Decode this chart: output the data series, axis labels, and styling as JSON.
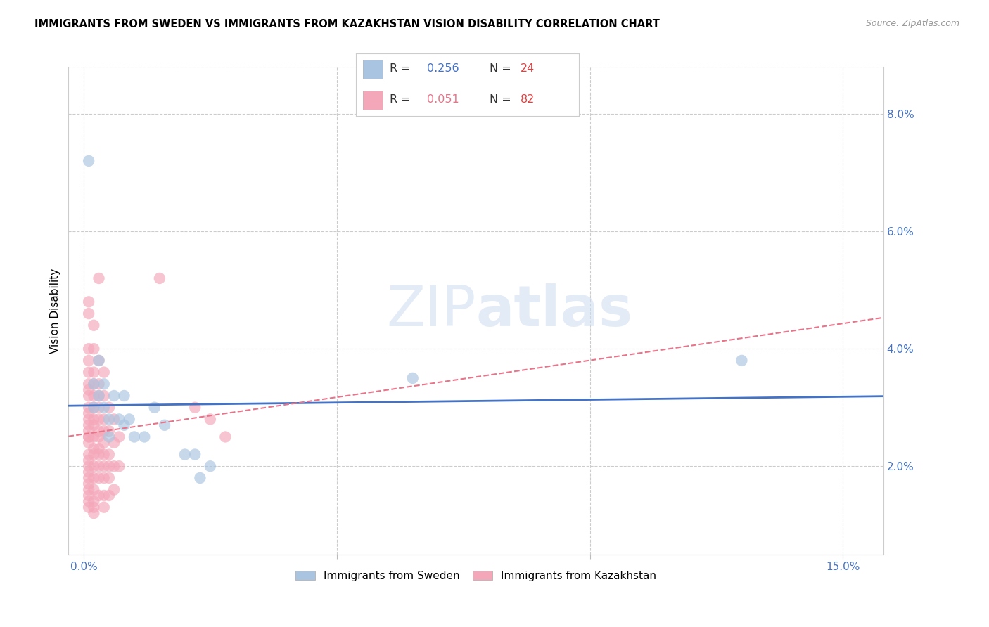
{
  "title": "IMMIGRANTS FROM SWEDEN VS IMMIGRANTS FROM KAZAKHSTAN VISION DISABILITY CORRELATION CHART",
  "source": "Source: ZipAtlas.com",
  "ylabel": "Vision Disability",
  "x_min": -0.003,
  "x_max": 0.158,
  "y_min": 0.005,
  "y_max": 0.088,
  "sweden_color": "#a8c4e0",
  "sweden_color_line": "#4472c4",
  "kazakhstan_color": "#f4a7b9",
  "kazakhstan_color_line": "#e8748a",
  "watermark": "ZIPatlas",
  "bottom_legend_sweden": "Immigrants from Sweden",
  "bottom_legend_kazakhstan": "Immigrants from Kazakhstan",
  "sweden_points": [
    [
      0.001,
      0.072
    ],
    [
      0.002,
      0.034
    ],
    [
      0.002,
      0.03
    ],
    [
      0.003,
      0.038
    ],
    [
      0.003,
      0.032
    ],
    [
      0.004,
      0.034
    ],
    [
      0.004,
      0.03
    ],
    [
      0.005,
      0.028
    ],
    [
      0.005,
      0.025
    ],
    [
      0.006,
      0.032
    ],
    [
      0.007,
      0.028
    ],
    [
      0.008,
      0.027
    ],
    [
      0.008,
      0.032
    ],
    [
      0.009,
      0.028
    ],
    [
      0.01,
      0.025
    ],
    [
      0.012,
      0.025
    ],
    [
      0.014,
      0.03
    ],
    [
      0.016,
      0.027
    ],
    [
      0.02,
      0.022
    ],
    [
      0.022,
      0.022
    ],
    [
      0.023,
      0.018
    ],
    [
      0.025,
      0.02
    ],
    [
      0.065,
      0.035
    ],
    [
      0.13,
      0.038
    ]
  ],
  "kazakhstan_points": [
    [
      0.001,
      0.048
    ],
    [
      0.001,
      0.046
    ],
    [
      0.001,
      0.04
    ],
    [
      0.001,
      0.038
    ],
    [
      0.001,
      0.036
    ],
    [
      0.001,
      0.034
    ],
    [
      0.001,
      0.033
    ],
    [
      0.001,
      0.032
    ],
    [
      0.001,
      0.03
    ],
    [
      0.001,
      0.029
    ],
    [
      0.001,
      0.028
    ],
    [
      0.001,
      0.027
    ],
    [
      0.001,
      0.026
    ],
    [
      0.001,
      0.025
    ],
    [
      0.001,
      0.025
    ],
    [
      0.001,
      0.024
    ],
    [
      0.001,
      0.022
    ],
    [
      0.001,
      0.021
    ],
    [
      0.001,
      0.02
    ],
    [
      0.001,
      0.019
    ],
    [
      0.001,
      0.018
    ],
    [
      0.001,
      0.017
    ],
    [
      0.001,
      0.016
    ],
    [
      0.001,
      0.015
    ],
    [
      0.001,
      0.014
    ],
    [
      0.001,
      0.013
    ],
    [
      0.002,
      0.044
    ],
    [
      0.002,
      0.04
    ],
    [
      0.002,
      0.036
    ],
    [
      0.002,
      0.034
    ],
    [
      0.002,
      0.032
    ],
    [
      0.002,
      0.03
    ],
    [
      0.002,
      0.028
    ],
    [
      0.002,
      0.027
    ],
    [
      0.002,
      0.025
    ],
    [
      0.002,
      0.023
    ],
    [
      0.002,
      0.022
    ],
    [
      0.002,
      0.02
    ],
    [
      0.002,
      0.018
    ],
    [
      0.002,
      0.016
    ],
    [
      0.002,
      0.014
    ],
    [
      0.002,
      0.013
    ],
    [
      0.002,
      0.012
    ],
    [
      0.003,
      0.052
    ],
    [
      0.003,
      0.038
    ],
    [
      0.003,
      0.034
    ],
    [
      0.003,
      0.032
    ],
    [
      0.003,
      0.03
    ],
    [
      0.003,
      0.028
    ],
    [
      0.003,
      0.026
    ],
    [
      0.003,
      0.025
    ],
    [
      0.003,
      0.023
    ],
    [
      0.003,
      0.022
    ],
    [
      0.003,
      0.02
    ],
    [
      0.003,
      0.018
    ],
    [
      0.003,
      0.015
    ],
    [
      0.004,
      0.036
    ],
    [
      0.004,
      0.032
    ],
    [
      0.004,
      0.028
    ],
    [
      0.004,
      0.026
    ],
    [
      0.004,
      0.024
    ],
    [
      0.004,
      0.022
    ],
    [
      0.004,
      0.02
    ],
    [
      0.004,
      0.018
    ],
    [
      0.004,
      0.015
    ],
    [
      0.004,
      0.013
    ],
    [
      0.005,
      0.03
    ],
    [
      0.005,
      0.026
    ],
    [
      0.005,
      0.022
    ],
    [
      0.005,
      0.02
    ],
    [
      0.005,
      0.018
    ],
    [
      0.005,
      0.015
    ],
    [
      0.006,
      0.028
    ],
    [
      0.006,
      0.024
    ],
    [
      0.006,
      0.02
    ],
    [
      0.006,
      0.016
    ],
    [
      0.007,
      0.025
    ],
    [
      0.007,
      0.02
    ],
    [
      0.015,
      0.052
    ],
    [
      0.022,
      0.03
    ],
    [
      0.025,
      0.028
    ],
    [
      0.028,
      0.025
    ]
  ]
}
